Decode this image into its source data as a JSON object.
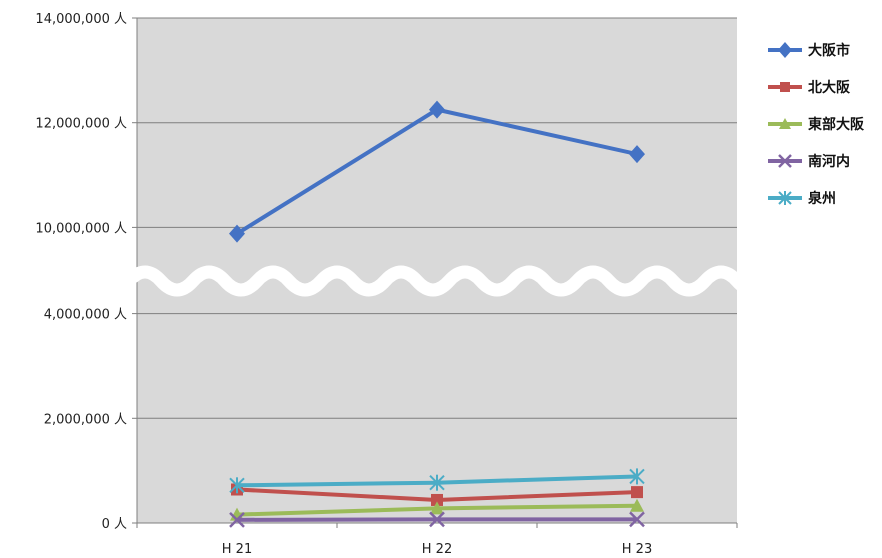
{
  "chart_data": {
    "type": "line",
    "categories": [
      "H 21",
      "H 22",
      "H 23"
    ],
    "y_unit": "人",
    "y_ticks": [
      {
        "value": 0,
        "label": "0"
      },
      {
        "value": 2000000,
        "label": "2,000,000"
      },
      {
        "value": 4000000,
        "label": "4,000,000"
      },
      {
        "value": 10000000,
        "label": "10,000,000"
      },
      {
        "value": 12000000,
        "label": "12,000,000"
      },
      {
        "value": 14000000,
        "label": "14,000,000"
      }
    ],
    "axis_break": [
      5000000,
      9500000
    ],
    "ylim": [
      0,
      14000000
    ],
    "grid": true,
    "legend_position": "right",
    "series": [
      {
        "name": "大阪市",
        "color": "#4472C4",
        "marker": "diamond",
        "values": [
          9880000,
          12250000,
          11400000
        ]
      },
      {
        "name": "北大阪",
        "color": "#C0504D",
        "marker": "square",
        "values": [
          640000,
          440000,
          590000
        ]
      },
      {
        "name": "東部大阪",
        "color": "#9BBB59",
        "marker": "triangle",
        "values": [
          160000,
          280000,
          330000
        ]
      },
      {
        "name": "南河内",
        "color": "#8064A2",
        "marker": "x",
        "values": [
          60000,
          70000,
          70000
        ]
      },
      {
        "name": "泉州",
        "color": "#4BACC6",
        "marker": "star",
        "values": [
          720000,
          770000,
          890000
        ]
      }
    ]
  }
}
